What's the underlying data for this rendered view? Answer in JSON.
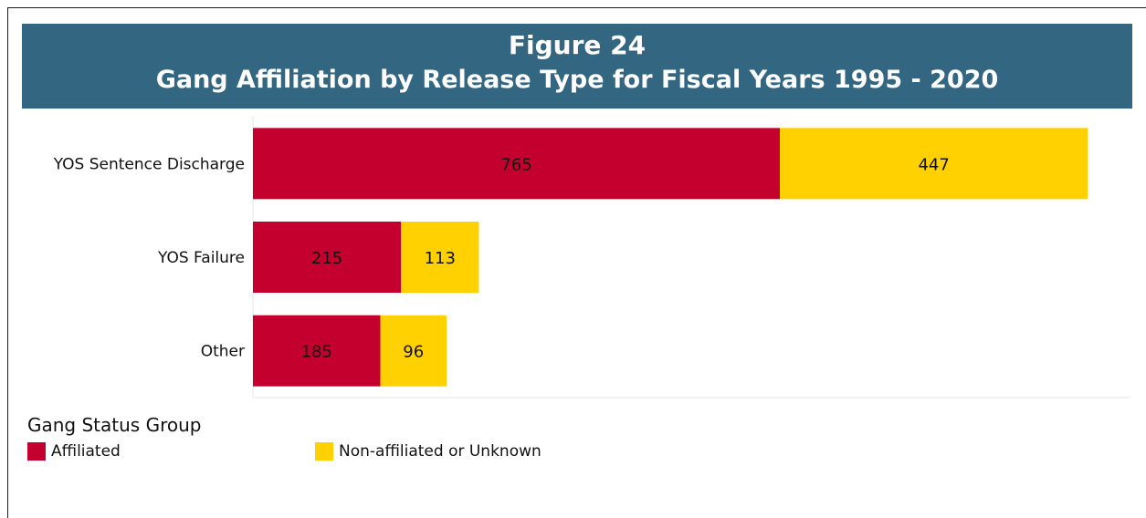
{
  "figure_number": "Figure 24",
  "title": "Gang Affiliation by Release Type for Fiscal Years 1995 - 2020",
  "legend": {
    "title": "Gang Status Group",
    "items": [
      {
        "label": "Affiliated",
        "color": "#c4002f"
      },
      {
        "label": "Non-affiliated or Unknown",
        "color": "#ffd100"
      }
    ]
  },
  "chart_data": {
    "type": "bar",
    "orientation": "horizontal",
    "stacked": true,
    "title": "Figure 24 Gang Affiliation by Release Type for Fiscal Years 1995 - 2020",
    "categories": [
      "YOS Sentence Discharge",
      "YOS Failure",
      "Other"
    ],
    "series": [
      {
        "name": "Affiliated",
        "values": [
          765,
          215,
          185
        ],
        "color": "#c4002f"
      },
      {
        "name": "Non-affiliated or Unknown",
        "values": [
          447,
          113,
          96
        ],
        "color": "#ffd100"
      }
    ],
    "xlim": [
      0,
      1274
    ],
    "legend_position": "bottom-left",
    "grid": false,
    "data_labels": true
  }
}
